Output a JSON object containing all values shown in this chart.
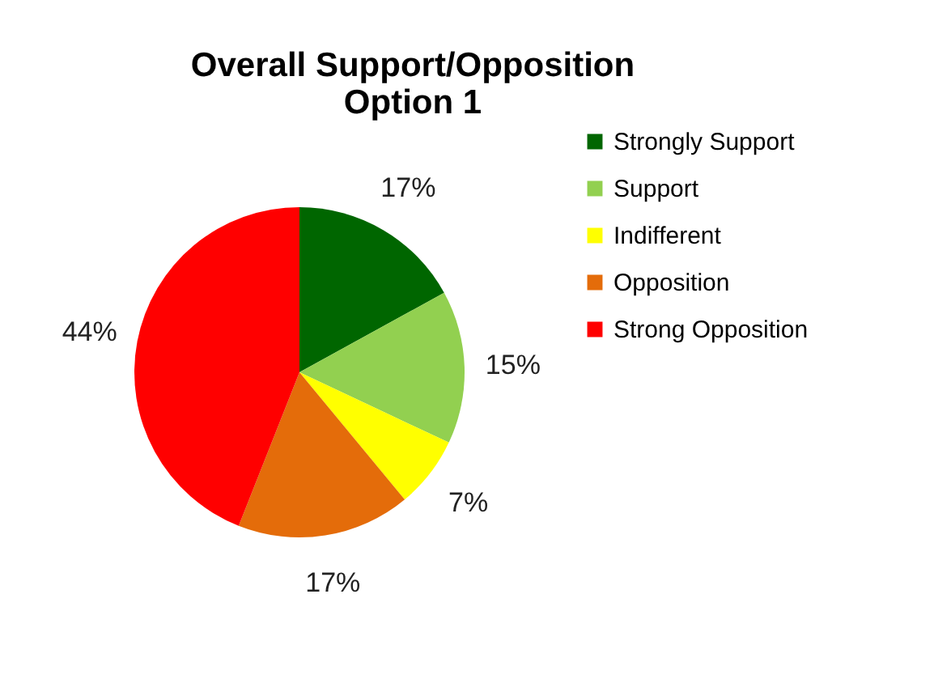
{
  "chart_data": {
    "type": "pie",
    "title": "Overall Support/Opposition\nOption 1",
    "categories": [
      "Strongly Support",
      "Support",
      "Indifferent",
      "Opposition",
      "Strong Opposition"
    ],
    "values": [
      17,
      15,
      7,
      17,
      44
    ],
    "colors": [
      "#006600",
      "#92d050",
      "#ffff00",
      "#e46c0a",
      "#ff0000"
    ],
    "value_labels": [
      "17%",
      "15%",
      "7%",
      "17%",
      "44%"
    ],
    "legend": "right"
  }
}
